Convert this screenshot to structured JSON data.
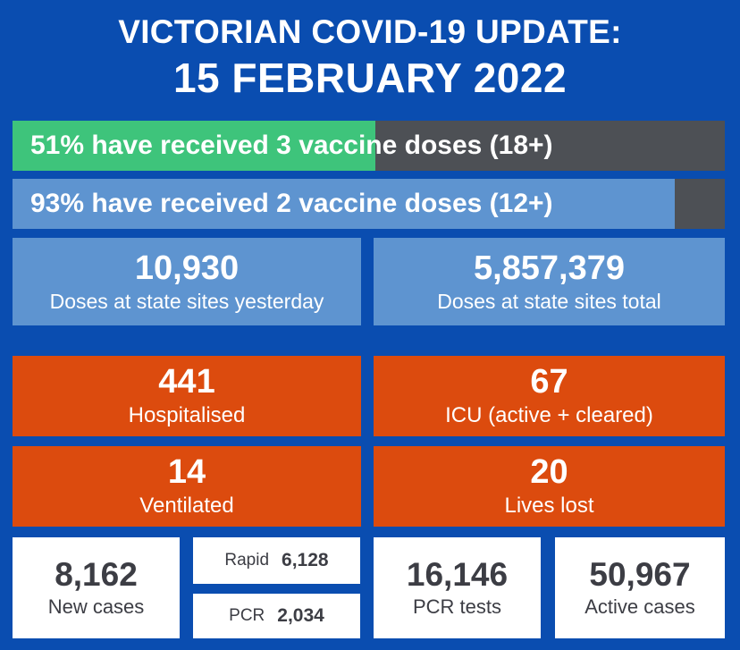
{
  "header": {
    "line1": "VICTORIAN COVID-19 UPDATE:",
    "line2": "15 FEBRUARY 2022"
  },
  "vaccination": {
    "three_doses": {
      "text": "51% have received 3 vaccine doses (18+)",
      "percent": 51,
      "color": "#3ec47b"
    },
    "two_doses": {
      "text": "93% have received 2 vaccine doses (12+)",
      "percent": 93,
      "color": "#5e94d0"
    }
  },
  "doses": {
    "yesterday": {
      "value": "10,930",
      "label": "Doses at state sites yesterday"
    },
    "total": {
      "value": "5,857,379",
      "label": "Doses at state sites total"
    }
  },
  "hospital": {
    "hospitalised": {
      "value": "441",
      "label": "Hospitalised"
    },
    "icu": {
      "value": "67",
      "label": "ICU (active + cleared)"
    },
    "ventilated": {
      "value": "14",
      "label": "Ventilated"
    },
    "lives_lost": {
      "value": "20",
      "label": "Lives lost"
    }
  },
  "cases": {
    "new_cases": {
      "value": "8,162",
      "label": "New cases"
    },
    "rapid": {
      "label": "Rapid",
      "value": "6,128"
    },
    "pcr": {
      "label": "PCR",
      "value": "2,034"
    },
    "pcr_tests": {
      "value": "16,146",
      "label": "PCR tests"
    },
    "active_cases": {
      "value": "50,967",
      "label": "Active cases"
    }
  },
  "colors": {
    "background": "#0a4db0",
    "green": "#3ec47b",
    "light_blue": "#5e94d0",
    "orange": "#dc4b0e",
    "grey": "#4d5055"
  }
}
